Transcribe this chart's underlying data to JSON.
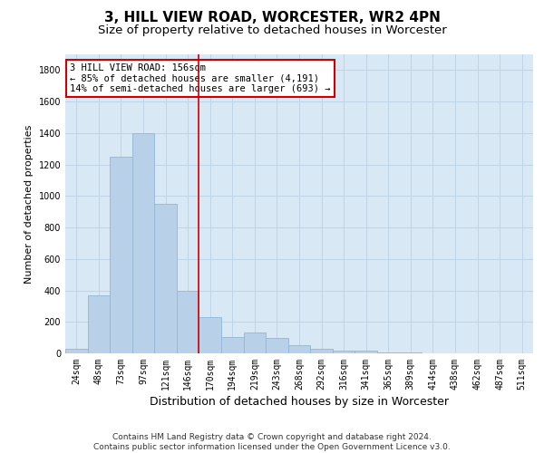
{
  "title": "3, HILL VIEW ROAD, WORCESTER, WR2 4PN",
  "subtitle": "Size of property relative to detached houses in Worcester",
  "xlabel": "Distribution of detached houses by size in Worcester",
  "ylabel": "Number of detached properties",
  "bar_labels": [
    "24sqm",
    "48sqm",
    "73sqm",
    "97sqm",
    "121sqm",
    "146sqm",
    "170sqm",
    "194sqm",
    "219sqm",
    "243sqm",
    "268sqm",
    "292sqm",
    "316sqm",
    "341sqm",
    "365sqm",
    "389sqm",
    "414sqm",
    "438sqm",
    "462sqm",
    "487sqm",
    "511sqm"
  ],
  "bar_values": [
    30,
    370,
    1250,
    1400,
    950,
    400,
    230,
    105,
    130,
    100,
    50,
    30,
    20,
    15,
    5,
    3,
    2,
    1,
    1,
    0,
    0
  ],
  "bar_color": "#b8d0e8",
  "bar_edgecolor": "#90b8d8",
  "ylim": [
    0,
    1900
  ],
  "yticks": [
    0,
    200,
    400,
    600,
    800,
    1000,
    1200,
    1400,
    1600,
    1800
  ],
  "grid_color": "#c0d4e8",
  "background_color": "#d8e8f4",
  "red_line_x": 5.5,
  "annotation_text": "3 HILL VIEW ROAD: 156sqm\n← 85% of detached houses are smaller (4,191)\n14% of semi-detached houses are larger (693) →",
  "annotation_box_color": "#ffffff",
  "annotation_box_edgecolor": "#cc0000",
  "footer_line1": "Contains HM Land Registry data © Crown copyright and database right 2024.",
  "footer_line2": "Contains public sector information licensed under the Open Government Licence v3.0.",
  "title_fontsize": 11,
  "subtitle_fontsize": 9.5,
  "xlabel_fontsize": 9,
  "ylabel_fontsize": 8,
  "tick_fontsize": 7,
  "footer_fontsize": 6.5,
  "annotation_fontsize": 7.5
}
